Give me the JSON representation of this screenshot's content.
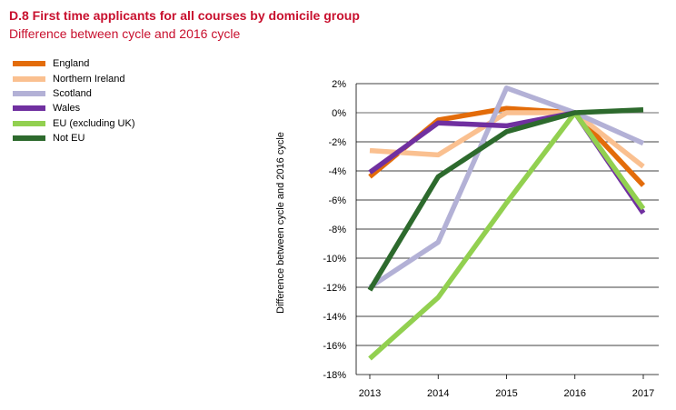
{
  "title": "D.8 First time applicants for all courses by domicile group",
  "subtitle": "Difference between cycle and 2016 cycle",
  "chart_data": {
    "type": "line",
    "title": "D.8 First time applicants for all courses by domicile group",
    "subtitle": "Difference between cycle and 2016 cycle",
    "xlabel": "",
    "ylabel": "Difference between cycle and 2016 cycle",
    "x": [
      "2013",
      "2014",
      "2015",
      "2016",
      "2017"
    ],
    "ylim": [
      -18,
      2
    ],
    "yticks": [
      2,
      0,
      -2,
      -4,
      -6,
      -8,
      -10,
      -12,
      -14,
      -16,
      -18
    ],
    "ytick_labels": [
      "2%",
      "0%",
      "-2%",
      "-4%",
      "-6%",
      "-8%",
      "-10%",
      "-12%",
      "-14%",
      "-16%",
      "-18%"
    ],
    "legend_position": "top-left",
    "grid": true,
    "series": [
      {
        "name": "England",
        "color": "#e36c0a",
        "values": [
          -4.4,
          -0.5,
          0.3,
          0.0,
          -5.0
        ]
      },
      {
        "name": "Northern Ireland",
        "color": "#fac090",
        "values": [
          -2.6,
          -2.9,
          0.0,
          0.0,
          -3.7
        ]
      },
      {
        "name": "Scotland",
        "color": "#b3b1d6",
        "values": [
          -12.0,
          -8.9,
          1.7,
          0.0,
          -2.1
        ]
      },
      {
        "name": "Wales",
        "color": "#7030a0",
        "values": [
          -4.1,
          -0.7,
          -0.9,
          0.0,
          -6.9
        ]
      },
      {
        "name": "EU (excluding UK)",
        "color": "#92d050",
        "values": [
          -16.9,
          -12.7,
          -6.2,
          0.0,
          -6.6
        ]
      },
      {
        "name": "Not EU",
        "color": "#2d6a2d",
        "values": [
          -12.2,
          -4.4,
          -1.3,
          0.0,
          0.2
        ]
      }
    ]
  }
}
